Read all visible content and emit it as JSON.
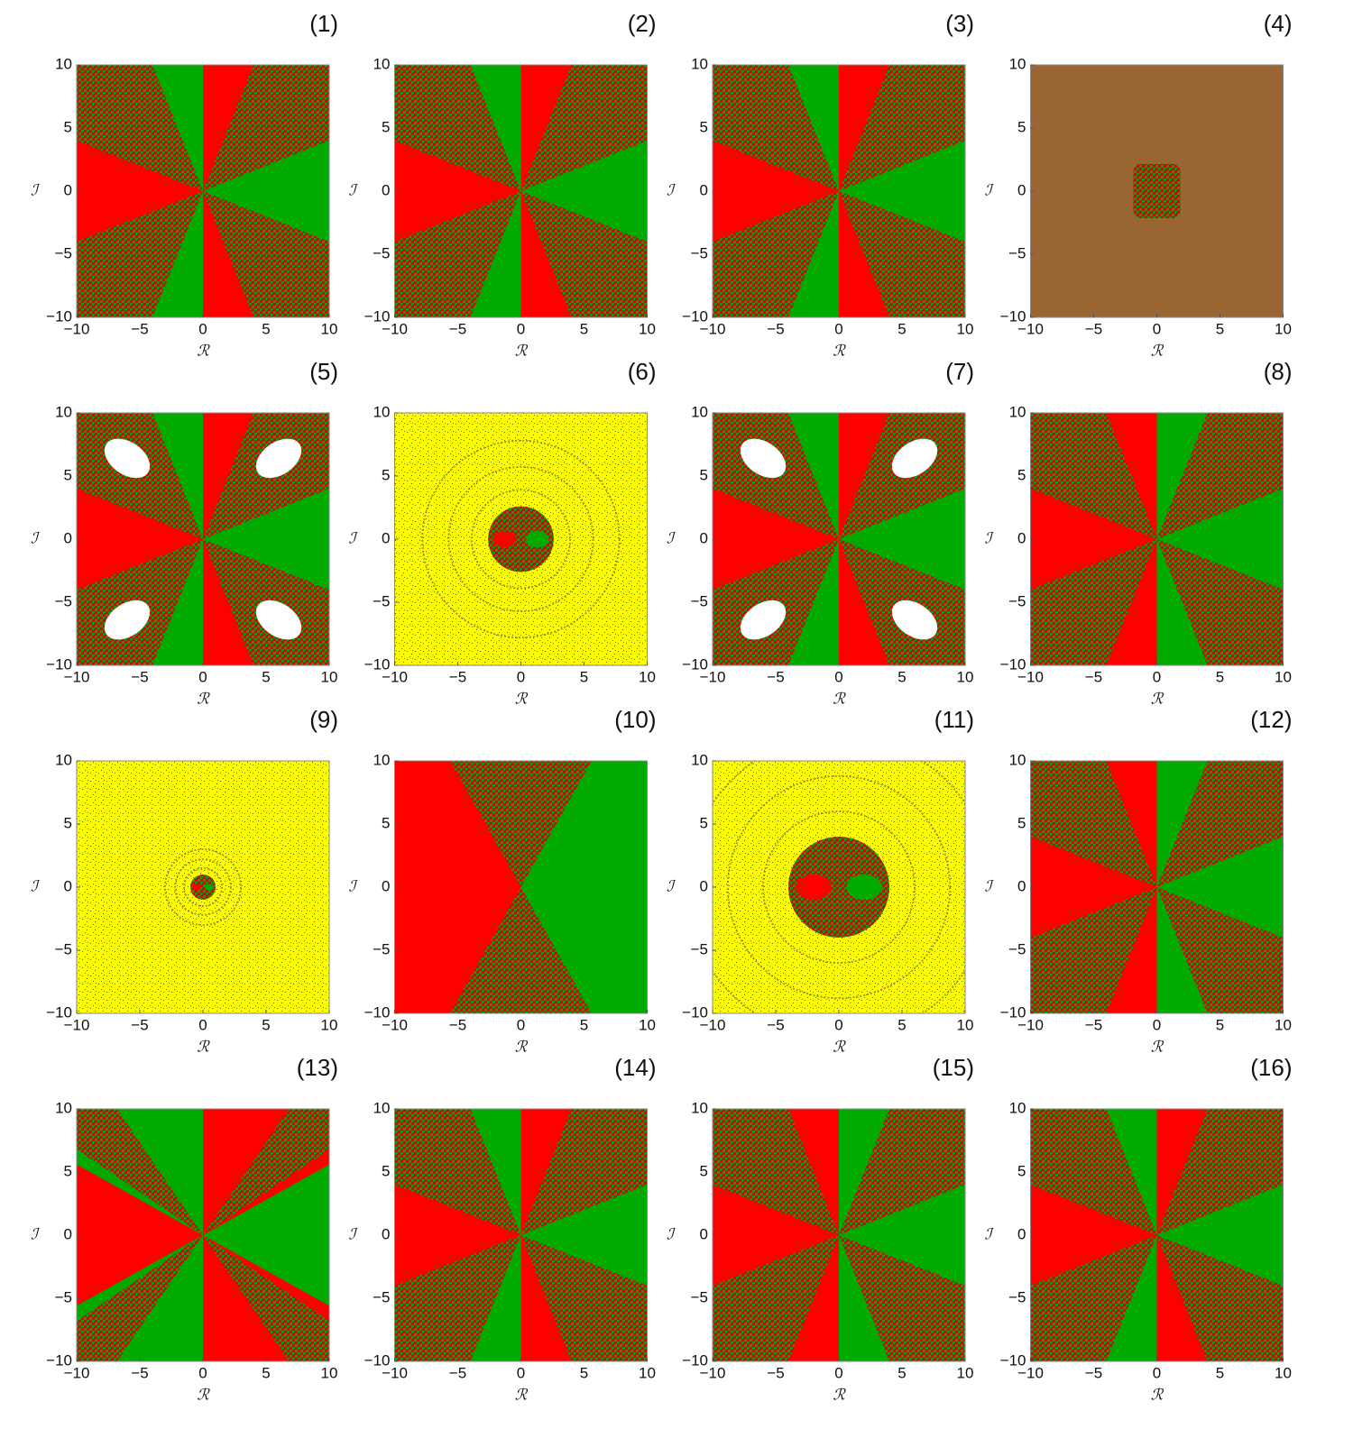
{
  "chart_data": [
    {
      "type": "basin",
      "title": "(1)",
      "xlabel": "ℛ",
      "ylabel": "ℐ",
      "xlim": [
        -10,
        10
      ],
      "ylim": [
        -10,
        10
      ],
      "xticks": [
        {
          "value": -10,
          "label": "−10"
        },
        {
          "value": -5,
          "label": "−5"
        },
        0,
        5,
        10
      ],
      "yticks": [
        {
          "value": -10,
          "label": "−10"
        },
        {
          "value": -5,
          "label": "−5"
        },
        0,
        5,
        10
      ]
    },
    {
      "type": "basin",
      "title": "(2)",
      "xlabel": "ℛ",
      "ylabel": "ℐ",
      "xlim": [
        -10,
        10
      ],
      "ylim": [
        -10,
        10
      ],
      "xticks": [
        {
          "value": -10,
          "label": "−10"
        },
        {
          "value": -5,
          "label": "−5"
        },
        0,
        5,
        10
      ],
      "yticks": [
        {
          "value": -10,
          "label": "−10"
        },
        {
          "value": -5,
          "label": "−5"
        },
        0,
        5,
        10
      ]
    },
    {
      "type": "basin",
      "title": "(3)",
      "xlabel": "ℛ",
      "ylabel": "ℐ",
      "xlim": [
        -10,
        10
      ],
      "ylim": [
        -10,
        10
      ],
      "xticks": [
        {
          "value": -10,
          "label": "−10"
        },
        {
          "value": -5,
          "label": "−5"
        },
        0,
        5,
        10
      ],
      "yticks": [
        {
          "value": -10,
          "label": "−10"
        },
        {
          "value": -5,
          "label": "−5"
        },
        0,
        5,
        10
      ]
    },
    {
      "type": "basin",
      "title": "(4)",
      "xlabel": "ℛ",
      "ylabel": "ℐ",
      "xlim": [
        -10,
        10
      ],
      "ylim": [
        -10,
        10
      ],
      "xticks": [
        {
          "value": -10,
          "label": "−10"
        },
        {
          "value": -5,
          "label": "−5"
        },
        0,
        5,
        10
      ],
      "yticks": [
        {
          "value": -10,
          "label": "−10"
        },
        {
          "value": -5,
          "label": "−5"
        },
        0,
        5,
        10
      ]
    },
    {
      "type": "basin",
      "title": "(5)",
      "xlabel": "ℛ",
      "ylabel": "ℐ",
      "xlim": [
        -10,
        10
      ],
      "ylim": [
        -10,
        10
      ],
      "xticks": [
        {
          "value": -10,
          "label": "−10"
        },
        {
          "value": -5,
          "label": "−5"
        },
        0,
        5,
        10
      ],
      "yticks": [
        {
          "value": -10,
          "label": "−10"
        },
        {
          "value": -5,
          "label": "−5"
        },
        0,
        5,
        10
      ]
    },
    {
      "type": "basin",
      "title": "(6)",
      "xlabel": "ℛ",
      "ylabel": "ℐ",
      "xlim": [
        -10,
        10
      ],
      "ylim": [
        -10,
        10
      ],
      "xticks": [
        {
          "value": -10,
          "label": "−10"
        },
        {
          "value": -5,
          "label": "−5"
        },
        0,
        5,
        10
      ],
      "yticks": [
        {
          "value": -10,
          "label": "−10"
        },
        {
          "value": -5,
          "label": "−5"
        },
        0,
        5,
        10
      ]
    },
    {
      "type": "basin",
      "title": "(7)",
      "xlabel": "ℛ",
      "ylabel": "ℐ",
      "xlim": [
        -10,
        10
      ],
      "ylim": [
        -10,
        10
      ],
      "xticks": [
        {
          "value": -10,
          "label": "−10"
        },
        {
          "value": -5,
          "label": "−5"
        },
        0,
        5,
        10
      ],
      "yticks": [
        {
          "value": -10,
          "label": "−10"
        },
        {
          "value": -5,
          "label": "−5"
        },
        0,
        5,
        10
      ]
    },
    {
      "type": "basin",
      "title": "(8)",
      "xlabel": "ℛ",
      "ylabel": "ℐ",
      "xlim": [
        -10,
        10
      ],
      "ylim": [
        -10,
        10
      ],
      "xticks": [
        {
          "value": -10,
          "label": "−10"
        },
        {
          "value": -5,
          "label": "−5"
        },
        0,
        5,
        10
      ],
      "yticks": [
        {
          "value": -10,
          "label": "−10"
        },
        {
          "value": -5,
          "label": "−5"
        },
        0,
        5,
        10
      ]
    },
    {
      "type": "basin",
      "title": "(9)",
      "xlabel": "ℛ",
      "ylabel": "ℐ",
      "xlim": [
        -10,
        10
      ],
      "ylim": [
        -10,
        10
      ],
      "xticks": [
        {
          "value": -10,
          "label": "−10"
        },
        {
          "value": -5,
          "label": "−5"
        },
        0,
        5,
        10
      ],
      "yticks": [
        {
          "value": -10,
          "label": "−10"
        },
        {
          "value": -5,
          "label": "−5"
        },
        0,
        5,
        10
      ]
    },
    {
      "type": "basin",
      "title": "(10)",
      "xlabel": "ℛ",
      "ylabel": "ℐ",
      "xlim": [
        -10,
        10
      ],
      "ylim": [
        -10,
        10
      ],
      "xticks": [
        {
          "value": -10,
          "label": "−10"
        },
        {
          "value": -5,
          "label": "−5"
        },
        0,
        5,
        10
      ],
      "yticks": [
        {
          "value": -10,
          "label": "−10"
        },
        {
          "value": -5,
          "label": "−5"
        },
        0,
        5,
        10
      ]
    },
    {
      "type": "basin",
      "title": "(11)",
      "xlabel": "ℛ",
      "ylabel": "ℐ",
      "xlim": [
        -10,
        10
      ],
      "ylim": [
        -10,
        10
      ],
      "xticks": [
        {
          "value": -10,
          "label": "−10"
        },
        {
          "value": -5,
          "label": "−5"
        },
        0,
        5,
        10
      ],
      "yticks": [
        {
          "value": -10,
          "label": "−10"
        },
        {
          "value": -5,
          "label": "−5"
        },
        0,
        5,
        10
      ]
    },
    {
      "type": "basin",
      "title": "(12)",
      "xlabel": "ℛ",
      "ylabel": "ℐ",
      "xlim": [
        -10,
        10
      ],
      "ylim": [
        -10,
        10
      ],
      "xticks": [
        {
          "value": -10,
          "label": "−10"
        },
        {
          "value": -5,
          "label": "−5"
        },
        0,
        5,
        10
      ],
      "yticks": [
        {
          "value": -10,
          "label": "−10"
        },
        {
          "value": -5,
          "label": "−5"
        },
        0,
        5,
        10
      ]
    },
    {
      "type": "basin",
      "title": "(13)",
      "xlabel": "ℛ",
      "ylabel": "ℐ",
      "xlim": [
        -10,
        10
      ],
      "ylim": [
        -10,
        10
      ],
      "xticks": [
        {
          "value": -10,
          "label": "−10"
        },
        {
          "value": -5,
          "label": "−5"
        },
        0,
        5,
        10
      ],
      "yticks": [
        {
          "value": -10,
          "label": "−10"
        },
        {
          "value": -5,
          "label": "−5"
        },
        0,
        5,
        10
      ]
    },
    {
      "type": "basin",
      "title": "(14)",
      "xlabel": "ℛ",
      "ylabel": "ℐ",
      "xlim": [
        -10,
        10
      ],
      "ylim": [
        -10,
        10
      ],
      "xticks": [
        {
          "value": -10,
          "label": "−10"
        },
        {
          "value": -5,
          "label": "−5"
        },
        0,
        5,
        10
      ],
      "yticks": [
        {
          "value": -10,
          "label": "−10"
        },
        {
          "value": -5,
          "label": "−5"
        },
        0,
        5,
        10
      ]
    },
    {
      "type": "basin",
      "title": "(15)",
      "xlabel": "ℛ",
      "ylabel": "ℐ",
      "xlim": [
        -10,
        10
      ],
      "ylim": [
        -10,
        10
      ],
      "xticks": [
        {
          "value": -10,
          "label": "−10"
        },
        {
          "value": -5,
          "label": "−5"
        },
        0,
        5,
        10
      ],
      "yticks": [
        {
          "value": -10,
          "label": "−10"
        },
        {
          "value": -5,
          "label": "−5"
        },
        0,
        5,
        10
      ]
    },
    {
      "type": "basin",
      "title": "(16)",
      "xlabel": "ℛ",
      "ylabel": "ℐ",
      "xlim": [
        -10,
        10
      ],
      "ylim": [
        -10,
        10
      ],
      "xticks": [
        {
          "value": -10,
          "label": "−10"
        },
        {
          "value": -5,
          "label": "−5"
        },
        0,
        5,
        10
      ],
      "yticks": [
        {
          "value": -10,
          "label": "−10"
        },
        {
          "value": -5,
          "label": "−5"
        },
        0,
        5,
        10
      ]
    }
  ]
}
